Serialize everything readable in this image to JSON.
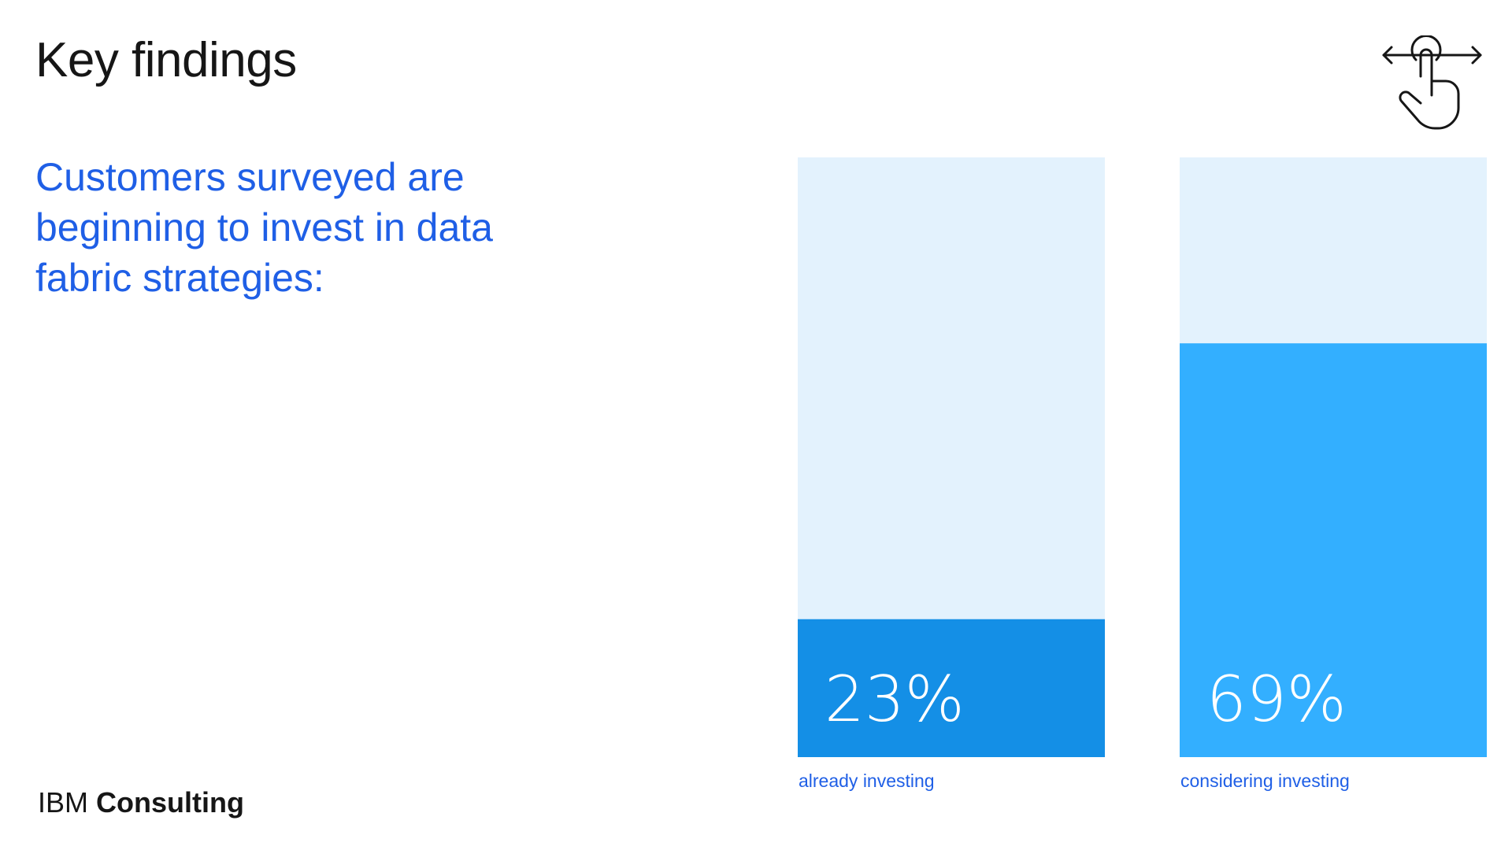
{
  "header": {
    "title": "Key findings"
  },
  "main": {
    "subtitle": "Customers surveyed are beginning to invest in data fabric strategies:"
  },
  "footer": {
    "logo_light": "IBM",
    "logo_bold": "Consulting"
  },
  "icons": {
    "swipe": "swipe-gesture-icon"
  },
  "colors": {
    "title": "#161616",
    "accent_text": "#1f5fe6",
    "track": "#e3f2fd",
    "bar_1": "#148fe6",
    "bar_2": "#33afff"
  },
  "chart_data": {
    "type": "bar",
    "categories": [
      "already investing",
      "considering investing"
    ],
    "values": [
      23,
      69
    ],
    "value_labels": [
      "23%",
      "69%"
    ],
    "ylim": [
      0,
      100
    ],
    "bar_colors": [
      "#148fe6",
      "#33afff"
    ],
    "track_color": "#e3f2fd"
  }
}
